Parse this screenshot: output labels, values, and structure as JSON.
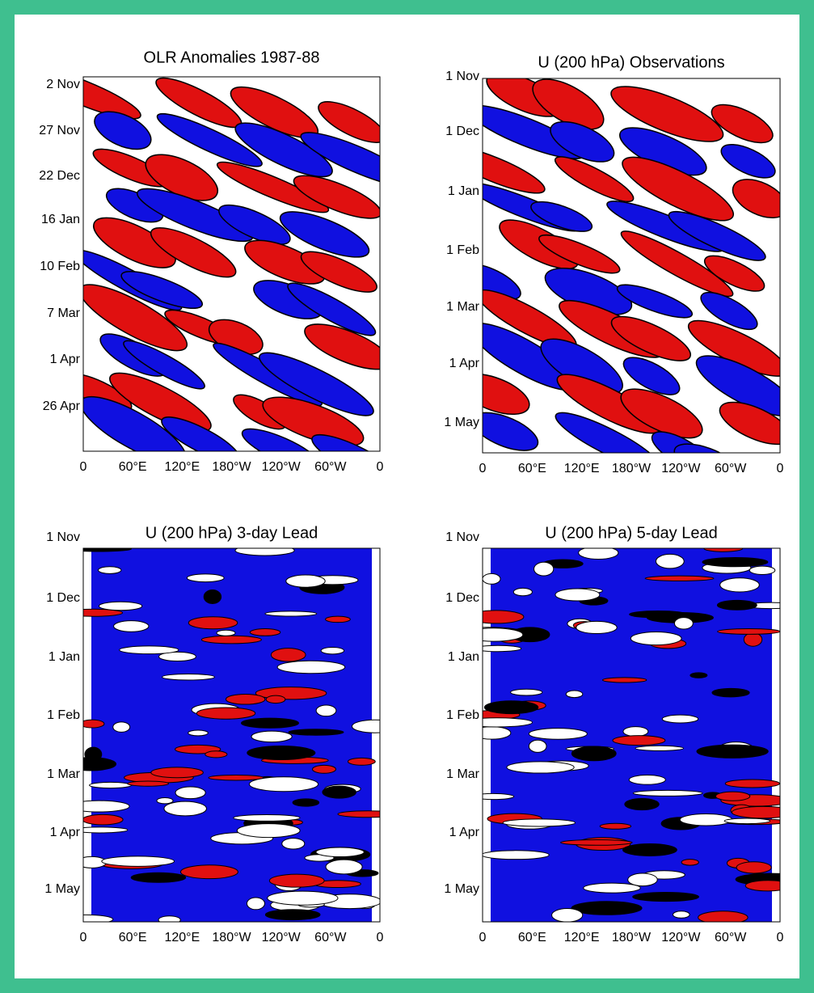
{
  "panels": [
    {
      "title": "OLR Anomalies 1987-88",
      "y_labels": [
        "2 Nov",
        "27 Nov",
        "22 Dec",
        "16 Jan",
        "10 Feb",
        "7 Mar",
        "1 Apr",
        "26 Apr"
      ]
    },
    {
      "title": "U (200 hPa) Observations",
      "y_labels": [
        "1 Nov",
        "1 Dec",
        "1 Jan",
        "1 Feb",
        "1 Mar",
        "1 Apr",
        "1 May"
      ]
    },
    {
      "title": "U (200 hPa) 3-day Lead",
      "y_labels": [
        "1 Nov",
        "1 Dec",
        "1 Jan",
        "1 Feb",
        "1 Mar",
        "1 Apr",
        "1 May"
      ]
    },
    {
      "title": "U (200 hPa) 5-day Lead",
      "y_labels": [
        "1 Nov",
        "1 Dec",
        "1 Jan",
        "1 Feb",
        "1 Mar",
        "1 Apr",
        "1 May"
      ]
    }
  ],
  "x_labels": [
    "0",
    "60°E",
    "120°E",
    "180°W",
    "120°W",
    "60°W",
    "0"
  ]
}
